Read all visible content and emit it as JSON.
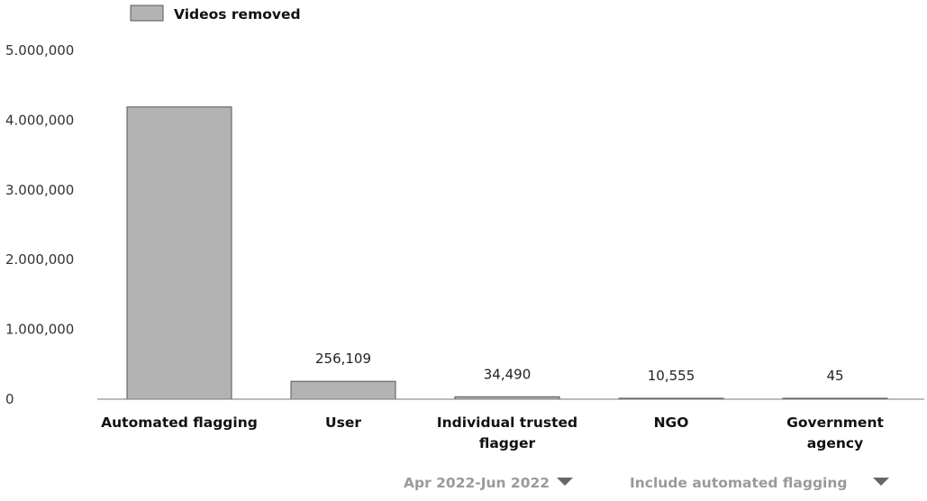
{
  "chart_data": {
    "type": "bar",
    "categories": [
      "Automated flagging",
      "User",
      "Individual trusted flagger",
      "NGO",
      "Government agency"
    ],
    "series": [
      {
        "name": "Videos removed",
        "values": [
          4190000,
          256109,
          34490,
          10555,
          45
        ]
      }
    ],
    "data_labels": [
      "",
      "256,109",
      "34,490",
      "10,555",
      "45"
    ],
    "y_ticks": [
      0,
      1000000,
      2000000,
      3000000,
      4000000,
      5000000
    ],
    "y_tick_labels": [
      "0",
      "1.000,000",
      "2.000,000",
      "3.000,000",
      "4.000,000",
      "5.000,000"
    ],
    "ylim": [
      0,
      5000000
    ],
    "legend": "top-left",
    "grid": false,
    "bar_color": "#b3b3b3",
    "bar_edge_color": "#555555"
  },
  "filters": {
    "period_label": "Apr 2022-Jun 2022",
    "flagging_label": "Include automated flagging"
  }
}
